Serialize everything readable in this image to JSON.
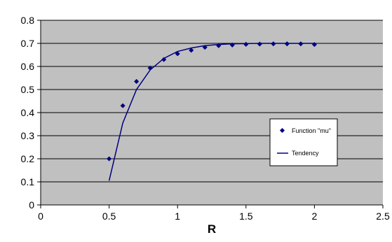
{
  "chart_data": {
    "type": "scatter",
    "title": "",
    "xlabel": "R",
    "ylabel": "",
    "xlim": [
      0,
      2.5
    ],
    "ylim": [
      0,
      0.8
    ],
    "x_ticks": [
      "0",
      "0.5",
      "1",
      "1.5",
      "2",
      "2.5"
    ],
    "y_ticks": [
      "0",
      "0.1",
      "0.2",
      "0.3",
      "0.4",
      "0.5",
      "0.6",
      "0.7",
      "0.8"
    ],
    "grid": "horizontal",
    "legend_position": "right",
    "plot_background": "#c0c0c0",
    "series_color": "#000080",
    "series": [
      {
        "name": "Function \"mu\"",
        "kind": "points",
        "x": [
          0.5,
          0.6,
          0.7,
          0.8,
          0.9,
          1.0,
          1.1,
          1.2,
          1.3,
          1.4,
          1.5,
          1.6,
          1.7,
          1.8,
          1.9,
          2.0
        ],
        "y": [
          0.2,
          0.43,
          0.535,
          0.593,
          0.63,
          0.655,
          0.67,
          0.683,
          0.69,
          0.693,
          0.696,
          0.697,
          0.698,
          0.698,
          0.698,
          0.695
        ]
      },
      {
        "name": "Tendency",
        "kind": "line",
        "x": [
          0.5,
          0.6,
          0.7,
          0.8,
          0.9,
          1.0,
          1.1,
          1.2,
          1.3,
          1.4,
          1.5,
          1.6,
          1.7,
          1.8,
          1.9,
          2.0
        ],
        "y": [
          0.105,
          0.355,
          0.5,
          0.585,
          0.635,
          0.665,
          0.68,
          0.69,
          0.695,
          0.698,
          0.699,
          0.7,
          0.7,
          0.7,
          0.7,
          0.7
        ]
      }
    ]
  }
}
